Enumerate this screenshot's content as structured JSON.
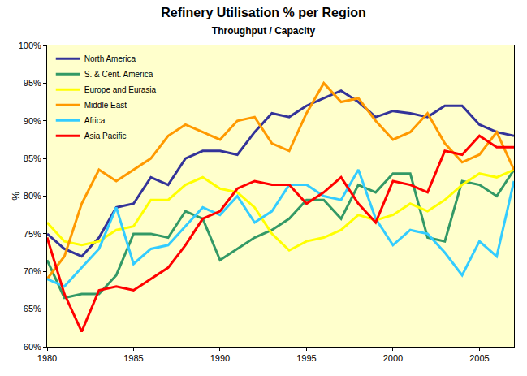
{
  "chart_data": {
    "type": "line",
    "title": "Refinery Utilisation % per Region",
    "subtitle": "Throughput / Capacity",
    "y_label": "%",
    "x": [
      1980,
      1981,
      1982,
      1983,
      1984,
      1985,
      1986,
      1987,
      1988,
      1989,
      1990,
      1991,
      1992,
      1993,
      1994,
      1995,
      1996,
      1997,
      1998,
      1999,
      2000,
      2001,
      2002,
      2003,
      2004,
      2005,
      2006,
      2007
    ],
    "series": [
      {
        "name": "North America",
        "color": "#333399",
        "values": [
          75,
          73,
          72,
          74.5,
          78.5,
          79,
          82.5,
          81.5,
          85,
          86,
          86,
          85.5,
          88.5,
          91,
          90.5,
          92,
          93,
          94,
          92.5,
          90.5,
          91.3,
          91,
          90.5,
          92,
          92,
          89.5,
          88.5,
          88
        ]
      },
      {
        "name": "S. & Cent. America",
        "color": "#339966",
        "values": [
          71.5,
          66.5,
          67,
          67,
          69.5,
          75,
          75,
          74.5,
          78,
          77,
          71.5,
          73,
          74.5,
          75.5,
          77,
          79.5,
          79.5,
          77,
          81.5,
          80.5,
          83,
          83,
          74.5,
          74,
          82,
          81.5,
          80,
          83.5
        ]
      },
      {
        "name": "Europe and Eurasia",
        "color": "#ffff00",
        "values": [
          76.5,
          74,
          73.5,
          74,
          75.5,
          76,
          79.5,
          79.5,
          81.5,
          82.5,
          81,
          80.5,
          78.5,
          75,
          72.8,
          74,
          74.5,
          75.5,
          77.5,
          76.8,
          77.5,
          79,
          78,
          79.5,
          81.5,
          83,
          82.5,
          83.5
        ]
      },
      {
        "name": "Middle East",
        "color": "#ff9900",
        "values": [
          69,
          72,
          79,
          83.5,
          82,
          83.5,
          85,
          88,
          89.5,
          88.5,
          87.5,
          90,
          90.5,
          87,
          86,
          91,
          95,
          92.5,
          93,
          90,
          87.5,
          88.5,
          91,
          87,
          84.5,
          85.5,
          88.5,
          83.5
        ]
      },
      {
        "name": "Africa",
        "color": "#33ccff",
        "values": [
          69,
          68,
          70.5,
          73,
          78.5,
          71,
          73,
          73.5,
          76,
          78.5,
          77.5,
          80,
          76.5,
          78,
          81.5,
          81.5,
          80,
          79.5,
          83.5,
          77,
          73.5,
          75.5,
          75,
          72.5,
          69.5,
          74,
          72,
          82
        ]
      },
      {
        "name": "Asia Pacific",
        "color": "#ff0000",
        "values": [
          74.5,
          67,
          62,
          67.5,
          68,
          67.5,
          69,
          70.5,
          73.5,
          77,
          78,
          81,
          82,
          81.5,
          81.5,
          79,
          80.5,
          82.5,
          79,
          76.5,
          82,
          81.5,
          80.5,
          86,
          85.5,
          88,
          86.5,
          86.5
        ]
      }
    ],
    "xlim": [
      1980,
      2007
    ],
    "xticks": [
      1980,
      1985,
      1990,
      1995,
      2000,
      2005
    ],
    "ylim": [
      60,
      100
    ],
    "yticks": [
      {
        "value": 60,
        "label": "60%"
      },
      {
        "value": 65,
        "label": "65%"
      },
      {
        "value": 70,
        "label": "70%"
      },
      {
        "value": 75,
        "label": "75%"
      },
      {
        "value": 80,
        "label": "80%"
      },
      {
        "value": 85,
        "label": "85%"
      },
      {
        "value": 90,
        "label": "90%"
      },
      {
        "value": 95,
        "label": "95%"
      },
      {
        "value": 100,
        "label": "100%"
      }
    ],
    "grid": false,
    "legend": "top left"
  }
}
